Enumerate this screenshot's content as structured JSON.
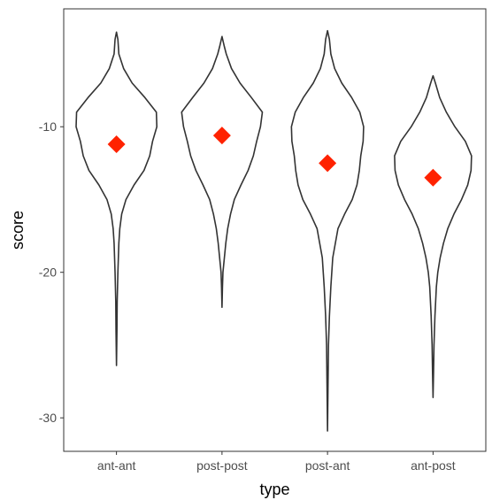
{
  "chart_data": {
    "type": "violin",
    "xlabel": "type",
    "ylabel": "score",
    "categories": [
      "ant-ant",
      "post-post",
      "post-ant",
      "ant-post"
    ],
    "ylim": [
      -32.3,
      -1.9
    ],
    "yticks": [
      -30,
      -20,
      -10
    ],
    "ytick_labels": [
      "-30",
      "-20",
      "-10"
    ],
    "grid": false,
    "legend": "none",
    "colors": {
      "violin_outline": "#333333",
      "mean_marker": "#ff2200",
      "panel_border": "#333333"
    },
    "violins": [
      {
        "category": "ant-ant",
        "mean": -11.2,
        "profile": [
          [
            -26.4,
            0.0
          ],
          [
            -24,
            0.01
          ],
          [
            -22,
            0.015
          ],
          [
            -20,
            0.03
          ],
          [
            -18,
            0.05
          ],
          [
            -17,
            0.07
          ],
          [
            -16,
            0.11
          ],
          [
            -15,
            0.2
          ],
          [
            -14,
            0.37
          ],
          [
            -13,
            0.58
          ],
          [
            -12,
            0.7
          ],
          [
            -11,
            0.76
          ],
          [
            -10,
            0.85
          ],
          [
            -9,
            0.84
          ],
          [
            -8,
            0.6
          ],
          [
            -7,
            0.33
          ],
          [
            -6,
            0.15
          ],
          [
            -5,
            0.05
          ],
          [
            -4,
            0.03
          ],
          [
            -3.5,
            0.0
          ]
        ]
      },
      {
        "category": "post-post",
        "mean": -10.6,
        "profile": [
          [
            -22.4,
            0.0
          ],
          [
            -21,
            0.01
          ],
          [
            -20,
            0.02
          ],
          [
            -19,
            0.05
          ],
          [
            -18,
            0.08
          ],
          [
            -17,
            0.12
          ],
          [
            -16,
            0.18
          ],
          [
            -15,
            0.26
          ],
          [
            -14,
            0.4
          ],
          [
            -13,
            0.55
          ],
          [
            -12,
            0.66
          ],
          [
            -11,
            0.73
          ],
          [
            -10,
            0.81
          ],
          [
            -9,
            0.85
          ],
          [
            -8,
            0.62
          ],
          [
            -7,
            0.38
          ],
          [
            -6,
            0.2
          ],
          [
            -5,
            0.09
          ],
          [
            -4.5,
            0.05
          ],
          [
            -3.8,
            0.0
          ]
        ]
      },
      {
        "category": "post-ant",
        "mean": -12.5,
        "profile": [
          [
            -30.9,
            0.0
          ],
          [
            -28,
            0.01
          ],
          [
            -25,
            0.02
          ],
          [
            -23,
            0.04
          ],
          [
            -21,
            0.07
          ],
          [
            -19,
            0.11
          ],
          [
            -17,
            0.22
          ],
          [
            -16,
            0.36
          ],
          [
            -15,
            0.52
          ],
          [
            -14,
            0.62
          ],
          [
            -13,
            0.67
          ],
          [
            -12,
            0.7
          ],
          [
            -11,
            0.75
          ],
          [
            -10,
            0.76
          ],
          [
            -9,
            0.68
          ],
          [
            -8,
            0.51
          ],
          [
            -7,
            0.3
          ],
          [
            -6,
            0.15
          ],
          [
            -5,
            0.07
          ],
          [
            -4,
            0.04
          ],
          [
            -3.4,
            0.0
          ]
        ]
      },
      {
        "category": "ant-post",
        "mean": -13.5,
        "profile": [
          [
            -28.6,
            0.0
          ],
          [
            -27,
            0.01
          ],
          [
            -25,
            0.02
          ],
          [
            -23,
            0.04
          ],
          [
            -21,
            0.07
          ],
          [
            -20,
            0.1
          ],
          [
            -19,
            0.15
          ],
          [
            -18,
            0.22
          ],
          [
            -17,
            0.31
          ],
          [
            -16,
            0.44
          ],
          [
            -15,
            0.6
          ],
          [
            -14,
            0.73
          ],
          [
            -13,
            0.8
          ],
          [
            -12,
            0.81
          ],
          [
            -11,
            0.68
          ],
          [
            -10,
            0.46
          ],
          [
            -9,
            0.28
          ],
          [
            -8,
            0.14
          ],
          [
            -7,
            0.05
          ],
          [
            -6.5,
            0.0
          ]
        ]
      }
    ]
  }
}
